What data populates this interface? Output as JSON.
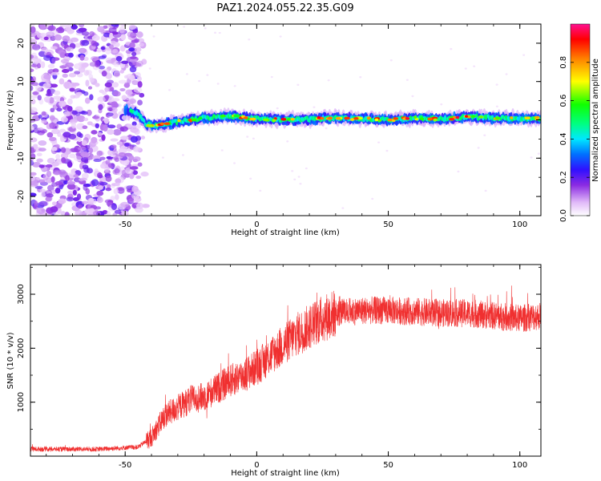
{
  "title": "PAZ1.2024.055.22.35.G09",
  "colors": {
    "snr_line": "#f03030",
    "axis": "#000000",
    "background": "#ffffff"
  },
  "chart_data": [
    {
      "type": "heatmap",
      "title": "",
      "xlabel": "Height of straight line (km)",
      "ylabel": "Frequency (Hz)",
      "xlim": [
        -86,
        108
      ],
      "ylim": [
        -25,
        25
      ],
      "xticks": [
        -50,
        0,
        50,
        100
      ],
      "yticks": [
        -20,
        -10,
        0,
        10,
        20
      ],
      "colorbar": {
        "label": "Normalized spectral amplitude",
        "range": [
          0,
          1
        ],
        "ticks": [
          0.0,
          0.2,
          0.4,
          0.6,
          0.8
        ],
        "colormap": "rainbow (white-violet-blue-cyan-green-yellow-red-magenta)"
      },
      "features": {
        "noise_region_x": [
          -86,
          -42
        ],
        "signal_track_start_x": -50,
        "signal_track": [
          {
            "x": -50,
            "f": 2.5
          },
          {
            "x": -45,
            "f": 1.5
          },
          {
            "x": -42,
            "f": -1.2
          },
          {
            "x": -38,
            "f": -1.5
          },
          {
            "x": -30,
            "f": -0.5
          },
          {
            "x": -20,
            "f": 0.5
          },
          {
            "x": -10,
            "f": 1.0
          },
          {
            "x": 0,
            "f": 0.3
          },
          {
            "x": 10,
            "f": 0.0
          },
          {
            "x": 20,
            "f": 0.2
          },
          {
            "x": 30,
            "f": 0.5
          },
          {
            "x": 40,
            "f": 0.3
          },
          {
            "x": 50,
            "f": 0.0
          },
          {
            "x": 60,
            "f": 0.5
          },
          {
            "x": 70,
            "f": 0.2
          },
          {
            "x": 80,
            "f": 0.8
          },
          {
            "x": 90,
            "f": 0.5
          },
          {
            "x": 100,
            "f": 0.3
          },
          {
            "x": 108,
            "f": 0.5
          }
        ]
      }
    },
    {
      "type": "line",
      "title": "",
      "xlabel": "Height of straight line (km)",
      "ylabel": "SNR (10 * v/v)",
      "xlim": [
        -86,
        108
      ],
      "ylim": [
        0,
        3550
      ],
      "xticks": [
        -50,
        0,
        50,
        100
      ],
      "yticks": [
        1000,
        2000,
        3000
      ],
      "series": [
        {
          "color": "#f03030",
          "trend": [
            {
              "x": -86,
              "y": 130
            },
            {
              "x": -60,
              "y": 130
            },
            {
              "x": -45,
              "y": 170
            },
            {
              "x": -40,
              "y": 350
            },
            {
              "x": -35,
              "y": 750
            },
            {
              "x": -30,
              "y": 900
            },
            {
              "x": -25,
              "y": 1050
            },
            {
              "x": -20,
              "y": 1100
            },
            {
              "x": -15,
              "y": 1250
            },
            {
              "x": -10,
              "y": 1400
            },
            {
              "x": -5,
              "y": 1500
            },
            {
              "x": 0,
              "y": 1650
            },
            {
              "x": 5,
              "y": 1850
            },
            {
              "x": 10,
              "y": 2050
            },
            {
              "x": 15,
              "y": 2250
            },
            {
              "x": 20,
              "y": 2400
            },
            {
              "x": 25,
              "y": 2550
            },
            {
              "x": 30,
              "y": 2650
            },
            {
              "x": 40,
              "y": 2700
            },
            {
              "x": 50,
              "y": 2700
            },
            {
              "x": 60,
              "y": 2680
            },
            {
              "x": 70,
              "y": 2650
            },
            {
              "x": 80,
              "y": 2650
            },
            {
              "x": 90,
              "y": 2600
            },
            {
              "x": 100,
              "y": 2550
            },
            {
              "x": 108,
              "y": 2600
            }
          ]
        }
      ]
    }
  ]
}
